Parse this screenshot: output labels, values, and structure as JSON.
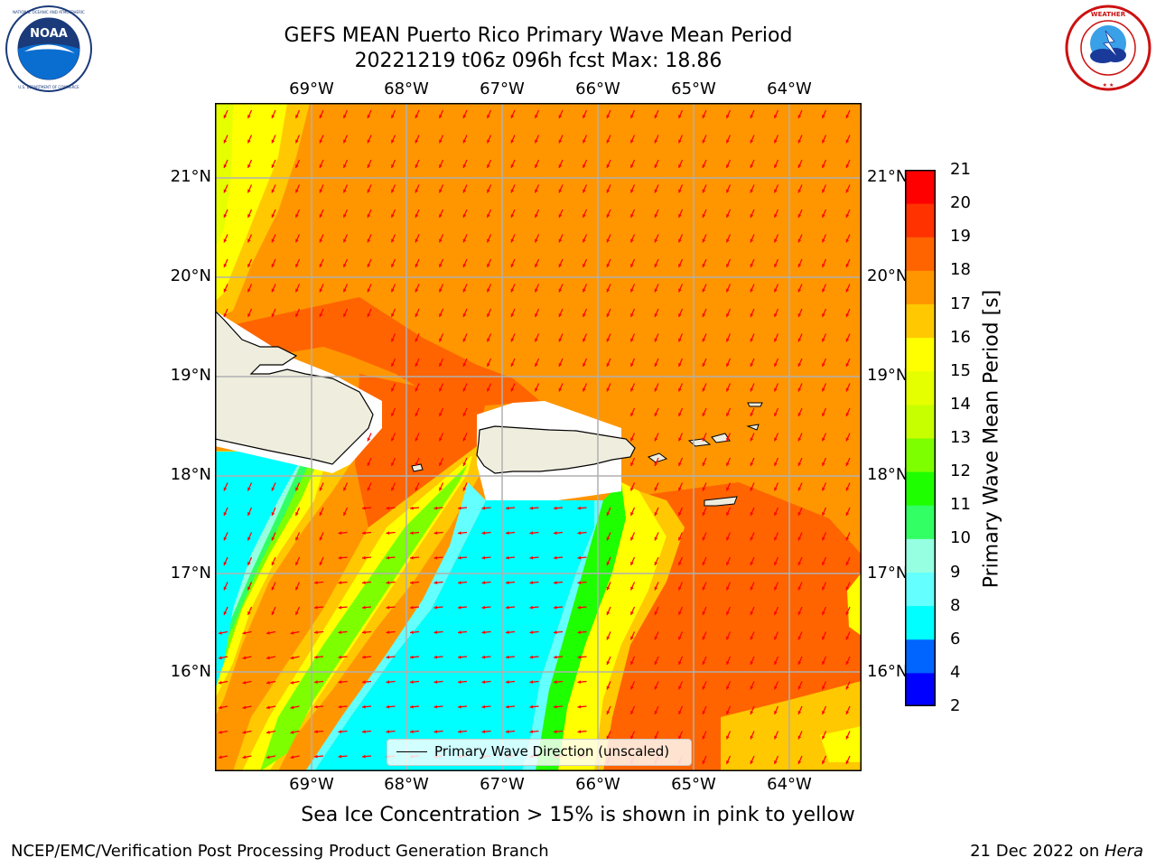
{
  "title_line1": "GEFS MEAN Puerto Rico Primary Wave Mean Period",
  "title_line2": "20221219 t06z 096h fcst   Max: 18.86",
  "logos": {
    "left": {
      "name": "noaa-logo",
      "text": "NOAA",
      "ring_text": "NATIONAL OCEANIC AND ATMOSPHERIC ADMINISTRATION · U.S. DEPARTMENT OF COMMERCE"
    },
    "right": {
      "name": "nws-logo",
      "ring_text": "NATIONAL WEATHER SERVICE"
    }
  },
  "map": {
    "lon_ticks": [
      "69°W",
      "68°W",
      "67°W",
      "66°W",
      "65°W",
      "64°W"
    ],
    "lat_ticks": [
      "21°N",
      "20°N",
      "19°N",
      "18°N",
      "17°N",
      "16°N"
    ],
    "legend_label": "Primary Wave Direction (unscaled)",
    "colors": {
      "land": "#efedde",
      "ocean_cyan": "#00ffff",
      "orange": "#ff8c00",
      "dark_orange": "#ff6400",
      "yellow": "#ffff00",
      "arrow": "#ff0000",
      "grid": "#b0b0b0"
    }
  },
  "colorbar": {
    "label": "Primary Wave Mean Period [s]",
    "ticks": [
      "2",
      "4",
      "6",
      "8",
      "9",
      "10",
      "11",
      "12",
      "13",
      "14",
      "15",
      "16",
      "17",
      "18",
      "19",
      "20",
      "21"
    ],
    "colors": [
      "#0000ff",
      "#0064ff",
      "#00ffff",
      "#64ffff",
      "#96ffe1",
      "#32ff64",
      "#1eff00",
      "#7dff00",
      "#c8ff00",
      "#e6ff00",
      "#ffff00",
      "#ffc800",
      "#ff9600",
      "#ff6400",
      "#ff3200",
      "#ff0000"
    ]
  },
  "caption": "Sea Ice Concentration > 15% is shown in pink to yellow",
  "footer_left": "NCEP/EMC/Verification Post Processing Product Generation Branch",
  "footer_right_prefix": "21 Dec 2022 on ",
  "footer_right_host": "Hera"
}
